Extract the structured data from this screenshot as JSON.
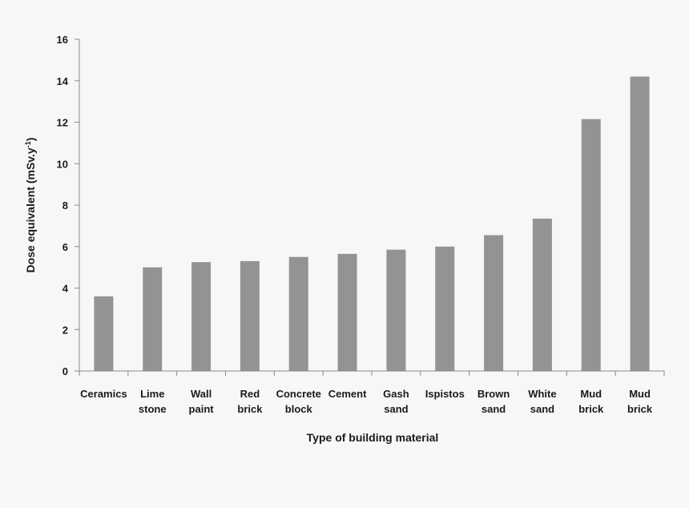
{
  "chart_data": {
    "type": "bar",
    "categories": [
      [
        "Ceramics"
      ],
      [
        "Lime",
        "stone"
      ],
      [
        "Wall",
        "paint"
      ],
      [
        "Red",
        "brick"
      ],
      [
        "Concrete",
        "block"
      ],
      [
        "Cement"
      ],
      [
        "Gash",
        "sand"
      ],
      [
        "Ispistos"
      ],
      [
        "Brown",
        "sand"
      ],
      [
        "White",
        "sand"
      ],
      [
        "Mud",
        "brick"
      ],
      [
        "Mud",
        "brick"
      ]
    ],
    "values": [
      3.6,
      5.0,
      5.25,
      5.3,
      5.5,
      5.65,
      5.85,
      6.0,
      6.55,
      7.35,
      12.15,
      14.2
    ],
    "xlabel": "Type of building material",
    "ylabel": "Dose equivalent  (mSv.y",
    "ylabel_superscript": "-1",
    "ylabel_suffix": ")",
    "ylim": [
      0,
      16
    ],
    "yticks": [
      0,
      2,
      4,
      6,
      8,
      10,
      12,
      14,
      16
    ],
    "grid": false,
    "bar_color": "#939393",
    "axis_color": "#8a8a8a"
  }
}
